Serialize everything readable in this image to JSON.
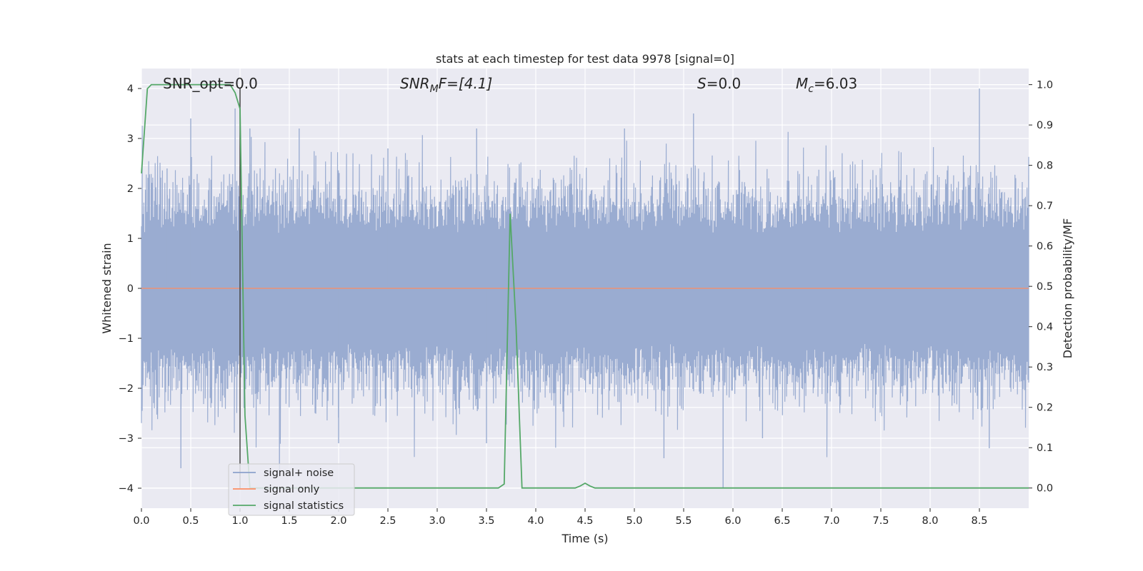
{
  "chart_data": {
    "type": "line",
    "title": "stats at each timestep for test data 9978 [signal=0]",
    "xlabel": "Time (s)",
    "ylabel_left": "Whitened strain",
    "ylabel_right": "Detection probability/MF",
    "xlim": [
      0.0,
      9.0
    ],
    "ylim_left": [
      -4.4,
      4.4
    ],
    "ylim_right": [
      -0.05,
      1.04
    ],
    "x_ticks": [
      "0.0",
      "0.5",
      "1.0",
      "1.5",
      "2.0",
      "2.5",
      "3.0",
      "3.5",
      "4.0",
      "4.5",
      "5.0",
      "5.5",
      "6.0",
      "6.5",
      "7.0",
      "7.5",
      "8.0",
      "8.5"
    ],
    "y_left_ticks": [
      "4",
      "3",
      "2",
      "1",
      "0",
      "−1",
      "−2",
      "−3",
      "−4"
    ],
    "y_right_ticks": [
      "1.0",
      "0.9",
      "0.8",
      "0.7",
      "0.6",
      "0.5",
      "0.4",
      "0.3",
      "0.2",
      "0.1",
      "0.0"
    ],
    "grid": true,
    "legend_position": "lower-left",
    "annotations": {
      "snr_opt": "SNR_opt=0.0",
      "snr_mf_base": "SNR",
      "snr_mf_sub": "M",
      "snr_mf_rest": "F=[4.1]",
      "s_label": "S",
      "s_value": "=0.0",
      "mc_base": "M",
      "mc_sub": "c",
      "mc_value": "=6.03"
    },
    "series": [
      {
        "name": "signal+ noise",
        "color": "#8da0cb",
        "axis": "left",
        "description_values": "dense whitened noise, approx within [-4.0, 4.0]",
        "peaks": [
          [
            0.26,
            2.4
          ],
          [
            0.5,
            3.4
          ],
          [
            0.95,
            3.6
          ],
          [
            1.1,
            3.2
          ],
          [
            1.6,
            3.2
          ],
          [
            2.5,
            2.8
          ],
          [
            3.4,
            3.2
          ],
          [
            4.9,
            3.2
          ],
          [
            5.6,
            3.5
          ],
          [
            8.5,
            4.0
          ]
        ],
        "troughs": [
          [
            0.4,
            -3.6
          ],
          [
            1.4,
            -3.7
          ],
          [
            2.0,
            -3.1
          ],
          [
            3.5,
            -3.1
          ],
          [
            5.3,
            -3.4
          ],
          [
            5.9,
            -4.0
          ],
          [
            6.3,
            -3.0
          ],
          [
            8.6,
            -3.2
          ]
        ]
      },
      {
        "name": "signal only",
        "color": "#fc8d62",
        "axis": "left",
        "x": [
          0.0,
          9.0
        ],
        "y": [
          0.0,
          0.0
        ]
      },
      {
        "name": "signal statistics",
        "color": "#55a868",
        "axis": "right",
        "x": [
          0.0,
          0.06,
          0.1,
          0.15,
          0.2,
          0.3,
          0.5,
          0.9,
          0.95,
          1.0,
          1.05,
          1.1,
          1.2,
          1.5,
          2.0,
          3.0,
          3.62,
          3.68,
          3.74,
          3.8,
          3.86,
          3.9,
          4.0,
          4.4,
          4.45,
          4.5,
          4.55,
          4.6,
          5.0,
          6.0,
          7.0,
          8.0,
          9.0
        ],
        "y": [
          0.78,
          0.99,
          1.0,
          1.0,
          1.0,
          1.0,
          1.0,
          1.0,
          0.98,
          0.94,
          0.18,
          0.0,
          0.0,
          0.0,
          0.0,
          0.0,
          0.0,
          0.01,
          0.68,
          0.4,
          0.0,
          0.0,
          0.0,
          0.0,
          0.005,
          0.012,
          0.005,
          0.0,
          0.0,
          0.0,
          0.0,
          0.0,
          0.0
        ]
      }
    ],
    "vertical_line_x": 1.0
  }
}
